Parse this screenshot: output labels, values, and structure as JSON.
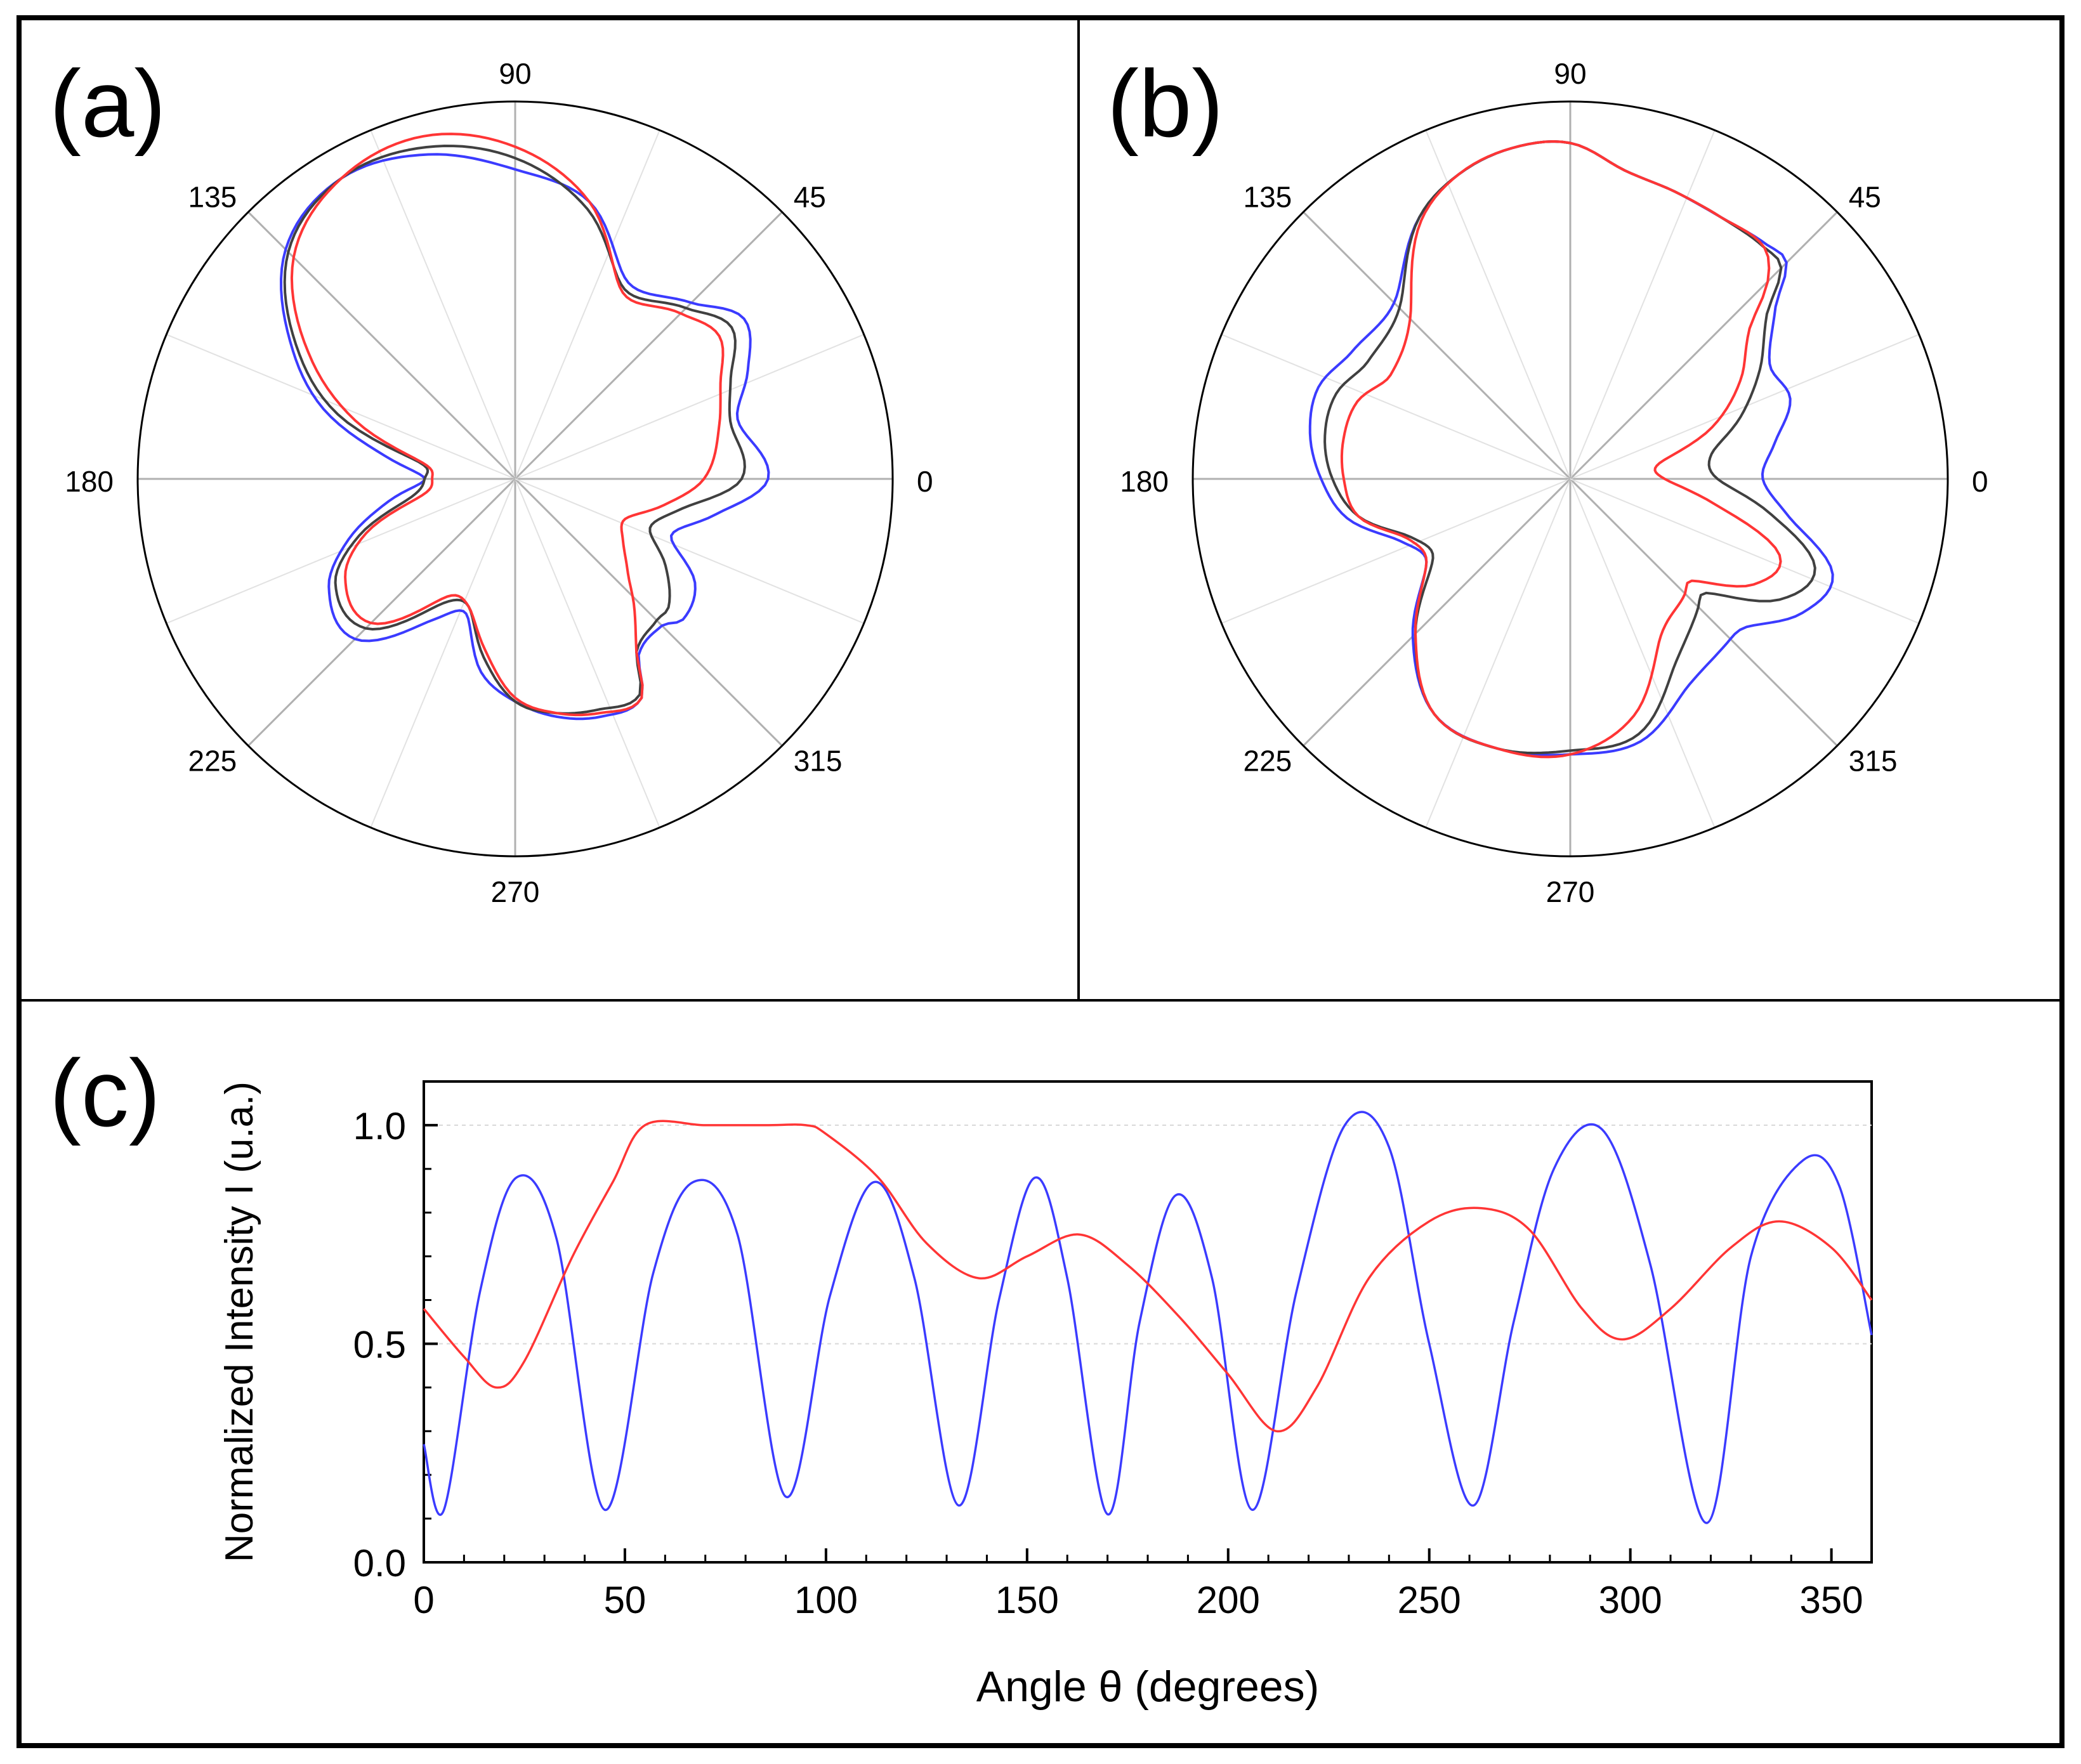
{
  "panels": {
    "a": {
      "label": "(a)"
    },
    "b": {
      "label": "(b)"
    },
    "c": {
      "label": "(c)"
    }
  },
  "colors": {
    "blue": "#3b3bff",
    "red": "#ff3535",
    "black": "#404040",
    "grid": "#c8c8c8",
    "frame": "#000000"
  },
  "chart_data": [
    {
      "id": "a",
      "type": "polar-line",
      "title": "(a)",
      "angle_ticks": [
        "0",
        "45",
        "90",
        "135",
        "180",
        "225",
        "270",
        "315"
      ],
      "r_range": [
        0,
        1
      ],
      "units": "radius normalized to outer circle; theta in degrees",
      "series": [
        {
          "name": "blue",
          "color": "#3b3bff",
          "theta": [
            0,
            15,
            25,
            35,
            45,
            60,
            75,
            90,
            105,
            120,
            135,
            150,
            160,
            170,
            180,
            190,
            200,
            210,
            225,
            240,
            250,
            260,
            270,
            280,
            290,
            300,
            305,
            315,
            320,
            330,
            340,
            350
          ],
          "r": [
            0.67,
            0.61,
            0.68,
            0.74,
            0.66,
            0.6,
            0.76,
            0.82,
            0.89,
            0.92,
            0.86,
            0.68,
            0.54,
            0.35,
            0.24,
            0.34,
            0.47,
            0.57,
            0.6,
            0.43,
            0.38,
            0.52,
            0.59,
            0.64,
            0.67,
            0.67,
            0.57,
            0.55,
            0.58,
            0.55,
            0.44,
            0.54
          ]
        },
        {
          "name": "black",
          "color": "#404040",
          "theta": [
            0,
            15,
            25,
            35,
            45,
            60,
            75,
            90,
            105,
            120,
            135,
            150,
            160,
            170,
            180,
            190,
            200,
            210,
            225,
            240,
            250,
            260,
            270,
            280,
            290,
            300,
            305,
            315,
            320,
            330,
            340,
            350
          ],
          "r": [
            0.6,
            0.59,
            0.63,
            0.7,
            0.64,
            0.58,
            0.74,
            0.85,
            0.91,
            0.92,
            0.85,
            0.66,
            0.5,
            0.26,
            0.24,
            0.28,
            0.44,
            0.55,
            0.56,
            0.38,
            0.36,
            0.48,
            0.59,
            0.63,
            0.65,
            0.66,
            0.56,
            0.53,
            0.53,
            0.46,
            0.38,
            0.45
          ]
        },
        {
          "name": "red",
          "color": "#ff3535",
          "theta": [
            0,
            15,
            25,
            35,
            45,
            60,
            75,
            90,
            105,
            120,
            135,
            150,
            160,
            170,
            180,
            190,
            200,
            210,
            225,
            240,
            250,
            260,
            270,
            280,
            290,
            300,
            305,
            315,
            320,
            330,
            340,
            350
          ],
          "r": [
            0.5,
            0.56,
            0.6,
            0.66,
            0.62,
            0.57,
            0.76,
            0.88,
            0.94,
            0.92,
            0.83,
            0.62,
            0.45,
            0.25,
            0.22,
            0.25,
            0.42,
            0.52,
            0.54,
            0.36,
            0.36,
            0.46,
            0.58,
            0.63,
            0.66,
            0.67,
            0.56,
            0.44,
            0.39,
            0.33,
            0.31,
            0.4
          ]
        }
      ]
    },
    {
      "id": "b",
      "type": "polar-line",
      "title": "(b)",
      "angle_ticks": [
        "0",
        "45",
        "90",
        "135",
        "180",
        "225",
        "270",
        "315"
      ],
      "r_range": [
        0,
        1
      ],
      "units": "radius normalized to outer circle; theta in degrees",
      "series": [
        {
          "name": "blue",
          "color": "#3b3bff",
          "theta": [
            0,
            10,
            20,
            30,
            40,
            45,
            50,
            60,
            70,
            80,
            90,
            100,
            110,
            120,
            135,
            150,
            160,
            170,
            180,
            190,
            200,
            210,
            225,
            240,
            255,
            270,
            285,
            300,
            315,
            320,
            330,
            340,
            350
          ],
          "r": [
            0.51,
            0.55,
            0.62,
            0.61,
            0.71,
            0.81,
            0.81,
            0.8,
            0.81,
            0.83,
            0.89,
            0.89,
            0.86,
            0.8,
            0.66,
            0.67,
            0.71,
            0.7,
            0.66,
            0.6,
            0.48,
            0.44,
            0.59,
            0.72,
            0.74,
            0.73,
            0.72,
            0.63,
            0.6,
            0.61,
            0.71,
            0.74,
            0.59
          ]
        },
        {
          "name": "black",
          "color": "#404040",
          "theta": [
            0,
            10,
            20,
            30,
            40,
            45,
            50,
            60,
            70,
            80,
            90,
            100,
            110,
            120,
            135,
            150,
            160,
            170,
            180,
            190,
            200,
            210,
            225,
            240,
            255,
            270,
            285,
            300,
            315,
            320,
            330,
            340,
            350
          ],
          "r": [
            0.39,
            0.38,
            0.48,
            0.58,
            0.68,
            0.79,
            0.8,
            0.8,
            0.81,
            0.83,
            0.89,
            0.89,
            0.86,
            0.8,
            0.64,
            0.62,
            0.66,
            0.66,
            0.63,
            0.57,
            0.45,
            0.42,
            0.58,
            0.72,
            0.74,
            0.72,
            0.7,
            0.56,
            0.48,
            0.47,
            0.64,
            0.69,
            0.54
          ]
        },
        {
          "name": "red",
          "color": "#ff3535",
          "theta": [
            0,
            10,
            20,
            30,
            40,
            45,
            50,
            60,
            70,
            80,
            90,
            100,
            110,
            120,
            135,
            150,
            160,
            170,
            180,
            190,
            200,
            210,
            225,
            240,
            255,
            270,
            285,
            300,
            315,
            320,
            330,
            340,
            350
          ],
          "r": [
            0.25,
            0.24,
            0.4,
            0.52,
            0.62,
            0.74,
            0.8,
            0.8,
            0.81,
            0.83,
            0.89,
            0.89,
            0.86,
            0.79,
            0.6,
            0.55,
            0.6,
            0.61,
            0.6,
            0.57,
            0.46,
            0.44,
            0.58,
            0.72,
            0.74,
            0.73,
            0.65,
            0.48,
            0.43,
            0.42,
            0.56,
            0.59,
            0.39
          ]
        }
      ]
    },
    {
      "id": "c",
      "type": "line",
      "title": "(c)",
      "xlabel": "Angle θ (degrees)",
      "ylabel": "Normalized Intensity I (u.a.)",
      "xlim": [
        0,
        360
      ],
      "ylim": [
        0,
        1.1
      ],
      "xticks": [
        "0",
        "50",
        "100",
        "150",
        "200",
        "250",
        "300",
        "350"
      ],
      "yticks": [
        "0.0",
        "0.5",
        "1.0"
      ],
      "series": [
        {
          "name": "blue",
          "color": "#3b3bff",
          "x": [
            0,
            5,
            14,
            23,
            33,
            45,
            57,
            67,
            78,
            90,
            101,
            112,
            122,
            133,
            143,
            152,
            160,
            170,
            178,
            187,
            196,
            206,
            217,
            229,
            240,
            250,
            261,
            271,
            281,
            293,
            305,
            319,
            330,
            343,
            352,
            360
          ],
          "y": [
            0.27,
            0.12,
            0.62,
            0.88,
            0.74,
            0.12,
            0.66,
            0.87,
            0.75,
            0.15,
            0.61,
            0.87,
            0.65,
            0.13,
            0.6,
            0.88,
            0.65,
            0.11,
            0.55,
            0.84,
            0.65,
            0.12,
            0.62,
            1.0,
            0.95,
            0.5,
            0.13,
            0.55,
            0.9,
            0.99,
            0.68,
            0.09,
            0.7,
            0.92,
            0.86,
            0.52
          ]
        },
        {
          "name": "red",
          "color": "#ff3535",
          "x": [
            0,
            10,
            18,
            25,
            37,
            47,
            55,
            70,
            85,
            95,
            100,
            113,
            125,
            138,
            150,
            163,
            175,
            188,
            200,
            212,
            222,
            235,
            250,
            263,
            275,
            288,
            298,
            310,
            325,
            337,
            350,
            360
          ],
          "y": [
            0.58,
            0.47,
            0.4,
            0.46,
            0.7,
            0.87,
            1.0,
            1.0,
            1.0,
            1.0,
            0.98,
            0.88,
            0.73,
            0.65,
            0.7,
            0.75,
            0.68,
            0.56,
            0.43,
            0.3,
            0.4,
            0.65,
            0.78,
            0.81,
            0.76,
            0.58,
            0.51,
            0.58,
            0.72,
            0.78,
            0.72,
            0.6
          ]
        }
      ]
    }
  ]
}
